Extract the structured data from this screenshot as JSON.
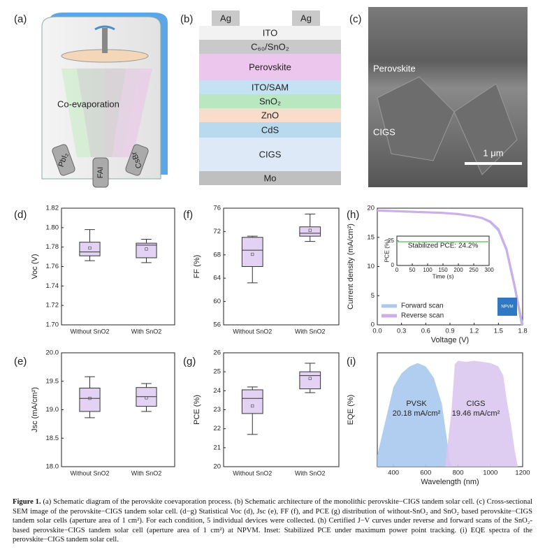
{
  "figure": {
    "panel_labels": [
      "(a)",
      "(b)",
      "(c)",
      "(d)",
      "(e)",
      "(f)",
      "(g)",
      "(h)",
      "(i)"
    ],
    "schematic": {
      "process": "Co-evaporation",
      "sources": [
        "PbI₂",
        "FAI",
        "CsBr"
      ]
    },
    "stack": {
      "contacts": [
        "Ag",
        "Ag"
      ],
      "layers": [
        {
          "name": "ITO",
          "color": "#f2f2f2"
        },
        {
          "name": "C₆₀/SnO₂",
          "color": "#c9c9c9"
        },
        {
          "name": "Perovskite",
          "color": "#ecc6ec"
        },
        {
          "name": "ITO/SAM",
          "color": "#c4e2f4"
        },
        {
          "name": "SnO₂",
          "color": "#b9e8c0"
        },
        {
          "name": "ZnO",
          "color": "#f9dccb"
        },
        {
          "name": "CdS",
          "color": "#b9d9ef"
        },
        {
          "name": "CIGS",
          "color": "#dde9f7"
        },
        {
          "name": "Mo",
          "color": "#bfbfbf"
        }
      ]
    },
    "sem": {
      "labels": [
        "Perovskite",
        "CIGS"
      ],
      "scale_bar": "1 μm"
    }
  },
  "chart_data": [
    {
      "type": "box",
      "ylabel": "Voc (V)",
      "categories": [
        "Without SnO2",
        "With SnO2"
      ],
      "color": "#e3d2f3",
      "ylim": [
        1.7,
        1.82
      ],
      "yticks": [
        {
          "value": 1.7,
          "label": "1.70"
        },
        1.72,
        1.74,
        1.76,
        1.78,
        {
          "value": 1.8,
          "label": "1.80"
        },
        1.82
      ],
      "boxes": [
        {
          "min": 1.766,
          "q1": 1.771,
          "median": 1.775,
          "q3": 1.785,
          "max": 1.798,
          "mean": 1.779
        },
        {
          "min": 1.764,
          "q1": 1.769,
          "median": 1.782,
          "q3": 1.784,
          "max": 1.788,
          "mean": 1.778
        }
      ]
    },
    {
      "type": "box",
      "ylabel": "Jsc (mA/cm²)",
      "categories": [
        "Without SnO2",
        "With SnO2"
      ],
      "color": "#e3d2f3",
      "ylim": [
        18.0,
        20.0
      ],
      "yticks": [
        {
          "value": 18.0,
          "label": "18.0"
        },
        18.5,
        {
          "value": 19.0,
          "label": "19.0"
        },
        19.5,
        {
          "value": 20.0,
          "label": "20.0"
        }
      ],
      "boxes": [
        {
          "min": 18.86,
          "q1": 18.97,
          "median": 19.2,
          "q3": 19.38,
          "max": 19.58,
          "mean": 19.2
        },
        {
          "min": 18.97,
          "q1": 19.06,
          "median": 19.23,
          "q3": 19.39,
          "max": 19.46,
          "mean": 19.21
        }
      ]
    },
    {
      "type": "box",
      "ylabel": "FF (%)",
      "categories": [
        "Without SnO2",
        "With SnO2"
      ],
      "color": "#e3d2f3",
      "ylim": [
        56,
        76
      ],
      "yticks": [
        56,
        60,
        64,
        68,
        72,
        76
      ],
      "boxes": [
        {
          "min": 63.2,
          "q1": 66.0,
          "median": 68.8,
          "q3": 71.0,
          "max": 71.2,
          "mean": 68.1
        },
        {
          "min": 70.3,
          "q1": 71.2,
          "median": 71.7,
          "q3": 72.8,
          "max": 75.0,
          "mean": 72.2
        }
      ]
    },
    {
      "type": "box",
      "ylabel": "PCE (%)",
      "categories": [
        "Without SnO2",
        "With SnO2"
      ],
      "color": "#e3d2f3",
      "ylim": [
        20,
        26
      ],
      "yticks": [
        20,
        21,
        22,
        23,
        24,
        25,
        26
      ],
      "boxes": [
        {
          "min": 21.7,
          "q1": 22.8,
          "median": 23.6,
          "q3": 24.05,
          "max": 24.2,
          "mean": 23.2
        },
        {
          "min": 23.9,
          "q1": 24.1,
          "median": 24.8,
          "q3": 25.0,
          "max": 25.45,
          "mean": 24.65
        }
      ]
    },
    {
      "type": "line",
      "xlabel": "Voltage (V)",
      "ylabel": "Current density (mA/cm²)",
      "logo": "NPVM",
      "xlim": [
        0,
        1.8
      ],
      "xticks": [
        {
          "value": 0,
          "label": "0.0"
        },
        0.3,
        0.6,
        0.9,
        1.2,
        1.5,
        1.8
      ],
      "ylim": [
        0,
        20
      ],
      "yticks": [
        0,
        5,
        10,
        15,
        20
      ],
      "series": [
        {
          "name": "Forward scan",
          "color": "#a9c9ee",
          "x": [
            0,
            0.2,
            0.4,
            0.6,
            0.8,
            1.0,
            1.2,
            1.3,
            1.4,
            1.5,
            1.6,
            1.7,
            1.75,
            1.79
          ],
          "values": [
            19.6,
            19.5,
            19.4,
            19.3,
            19.2,
            19.0,
            18.6,
            18.3,
            17.6,
            16.2,
            12.8,
            6.5,
            3.0,
            0
          ]
        },
        {
          "name": "Reverse scan",
          "color": "#cdaeea",
          "x": [
            0,
            0.2,
            0.4,
            0.6,
            0.8,
            1.0,
            1.2,
            1.3,
            1.4,
            1.5,
            1.6,
            1.7,
            1.75,
            1.8
          ],
          "values": [
            19.6,
            19.5,
            19.4,
            19.3,
            19.2,
            19.0,
            18.6,
            18.3,
            17.7,
            16.4,
            13.0,
            6.8,
            3.2,
            0
          ]
        }
      ]
    },
    {
      "type": "line",
      "xlabel": "Time (s)",
      "ylabel": "PCE (%)",
      "annotation": "Stabilized PCE: 24.2%",
      "xlim": [
        0,
        300
      ],
      "xticks": [
        0,
        50,
        100,
        150,
        200,
        250,
        300
      ],
      "ylim": [
        0,
        30
      ],
      "yticks": [
        0,
        25
      ],
      "series": [
        {
          "color": "#8fd18f",
          "x": [
            0,
            300
          ],
          "values": [
            24.2,
            24.2
          ]
        }
      ]
    },
    {
      "type": "area",
      "xlabel": "Wavelength (nm)",
      "ylabel": "EQE (%)",
      "xlim": [
        300,
        1200
      ],
      "xticks": [
        400,
        600,
        800,
        1000,
        1200
      ],
      "ylim": [
        0,
        100
      ],
      "annotations": [
        "PVSK",
        "20.18 mA/cm²",
        "CIGS",
        "19.46 mA/cm²"
      ],
      "series": [
        {
          "name": "PVSK",
          "color": "#a9c9ee",
          "x": [
            300,
            350,
            400,
            450,
            500,
            550,
            600,
            650,
            700,
            730,
            750,
            760
          ],
          "values": [
            10,
            40,
            70,
            82,
            88,
            91,
            88,
            78,
            55,
            25,
            5,
            0
          ]
        },
        {
          "name": "CIGS",
          "color": "#dcc6ef",
          "x": [
            720,
            760,
            780,
            800,
            850,
            900,
            950,
            1000,
            1050,
            1080,
            1100,
            1130,
            1150,
            1170
          ],
          "values": [
            0,
            50,
            90,
            93,
            92,
            93,
            92,
            91,
            88,
            80,
            60,
            35,
            15,
            0
          ]
        }
      ]
    }
  ],
  "caption": {
    "label": "Figure 1.",
    "text": " (a) Schematic diagram of the perovskite coevaporation process. (b) Schematic architecture of the monolithic perovskite−CIGS tandem solar cell. (c) Cross-sectional SEM image of the perovskite−CIGS tandem solar cell. (d−g) Statistical Voc (d), Jsc (e), FF (f), and PCE (g) distribution of without-SnO₂ and SnO₂ based perovskite−CIGS tandem solar cells (aperture area of 1 cm²). For each condition, 5 individual devices were collected. (h) Certified J−V curves under reverse and forward scans of the SnO₂-based perovskite−CIGS tandem solar cell (aperture area of 1 cm²) at NPVM. Inset: Stabilized PCE under maximum power point tracking. (i) EQE spectra of the perovskite−CIGS tandem solar cell."
  }
}
